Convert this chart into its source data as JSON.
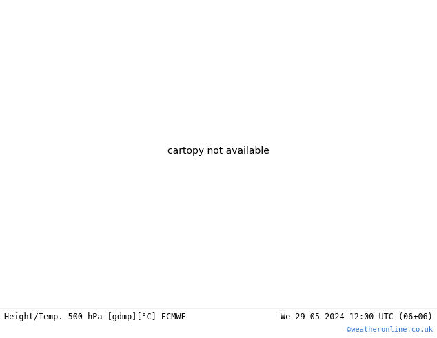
{
  "title_left": "Height/Temp. 500 hPa [gdmp][°C] ECMWF",
  "title_right": "We 29-05-2024 12:00 UTC (06+06)",
  "watermark": "©weatheronline.co.uk",
  "bg_gray": "#c8c8c8",
  "sea_color": "#c8c8c8",
  "land_color": "#d8d8d8",
  "green_color": "#a8d09a",
  "white_bar": "#ffffff",
  "figsize": [
    6.34,
    4.9
  ],
  "dpi": 100
}
